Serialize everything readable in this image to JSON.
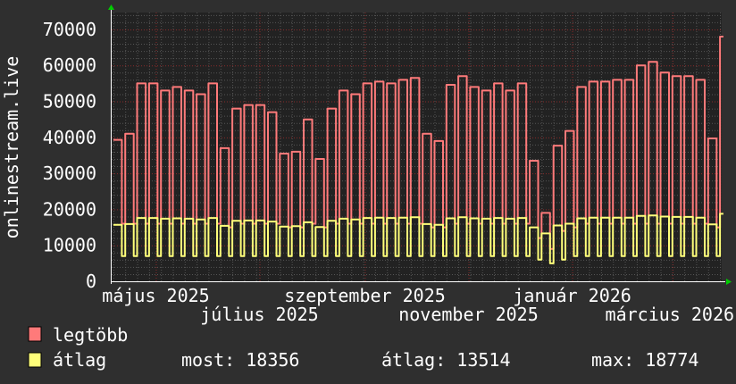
{
  "chart_data": {
    "type": "line",
    "ylabel": "onlinestream.live",
    "ylim": [
      0,
      74700
    ],
    "yticks": [
      0,
      10000,
      20000,
      30000,
      40000,
      50000,
      60000,
      70000
    ],
    "xlim": [
      "2025-04-05",
      "2026-03-30"
    ],
    "xticks": [
      {
        "date": "2025-05-01",
        "label": "május 2025"
      },
      {
        "date": "2025-07-01",
        "label": "július 2025"
      },
      {
        "date": "2025-09-01",
        "label": "szeptember 2025"
      },
      {
        "date": "2025-11-01",
        "label": "november 2025"
      },
      {
        "date": "2026-01-01",
        "label": "január 2026"
      },
      {
        "date": "2026-03-01",
        "label": "március 2026"
      }
    ],
    "grid": true,
    "x_resolution": "weekly (Mon–Fri plateau, weekend dip)",
    "week_start": "2025-04-06",
    "series": [
      {
        "name": "legtöbb",
        "color": "#ff7a7a",
        "weekday_values": [
          39300,
          41000,
          55000,
          55000,
          53000,
          54000,
          53000,
          52000,
          55000,
          37000,
          48000,
          49000,
          49000,
          47000,
          35500,
          36000,
          45000,
          34000,
          48000,
          53000,
          52000,
          55000,
          55500,
          55000,
          56000,
          56500,
          41000,
          39000,
          54600,
          57000,
          54000,
          53000,
          55000,
          53000,
          55000,
          33500,
          19000,
          37700,
          41800,
          54000,
          55500,
          55500,
          56000,
          56000,
          60000,
          61000,
          58000,
          57000,
          57000,
          56000,
          39700,
          68000
        ],
        "weekend_values": [
          16000,
          16000,
          16000,
          16000,
          16000,
          16000,
          16000,
          16000,
          16000,
          15000,
          16000,
          16000,
          16000,
          16000,
          15000,
          15000,
          16000,
          15000,
          16000,
          16000,
          16000,
          16000,
          16000,
          16000,
          16000,
          16000,
          15000,
          15000,
          16000,
          16000,
          16000,
          16000,
          16000,
          16000,
          16000,
          12000,
          9000,
          14000,
          15000,
          16000,
          16000,
          16000,
          16000,
          16000,
          16000,
          16000,
          16000,
          16000,
          16000,
          16000,
          15000,
          59000
        ]
      },
      {
        "name": "átlag",
        "color": "#ffff7a",
        "weekday_values": [
          15700,
          15900,
          17600,
          17600,
          17400,
          17500,
          17400,
          17200,
          17600,
          15400,
          16800,
          16900,
          16900,
          16600,
          15200,
          15300,
          16400,
          15100,
          16800,
          17400,
          17200,
          17600,
          17700,
          17600,
          17700,
          17800,
          15900,
          15700,
          17500,
          17800,
          17500,
          17400,
          17600,
          17400,
          17600,
          15000,
          13300,
          15500,
          16000,
          17500,
          17700,
          17700,
          17700,
          17700,
          18200,
          18300,
          18000,
          17900,
          17900,
          17700,
          15800,
          18774
        ],
        "weekend_values": [
          7000,
          7000,
          7000,
          7000,
          7000,
          7000,
          7000,
          7000,
          7000,
          7000,
          7000,
          7000,
          7000,
          7000,
          7000,
          7000,
          7000,
          7000,
          7000,
          7000,
          7000,
          7000,
          7000,
          7000,
          7000,
          7000,
          7000,
          7000,
          7000,
          7000,
          7000,
          7000,
          7000,
          7000,
          7000,
          6000,
          5000,
          6000,
          7000,
          7000,
          7000,
          7000,
          7000,
          7000,
          7000,
          7000,
          7000,
          7000,
          7000,
          7000,
          7000,
          18356
        ]
      }
    ]
  },
  "legend": {
    "max_label": "legtöbb",
    "avg_label": "átlag",
    "now": "most: 18356",
    "average": "átlag: 13514",
    "maximum": "max: 18774",
    "max_color": "#ff7a7a",
    "avg_color": "#ffff7a"
  },
  "colors": {
    "background": "#2f2f2f",
    "plot_background": "#222222",
    "minor_grid": "#555555",
    "major_grid": "#8a2a2a",
    "arrow": "#00cc00"
  }
}
